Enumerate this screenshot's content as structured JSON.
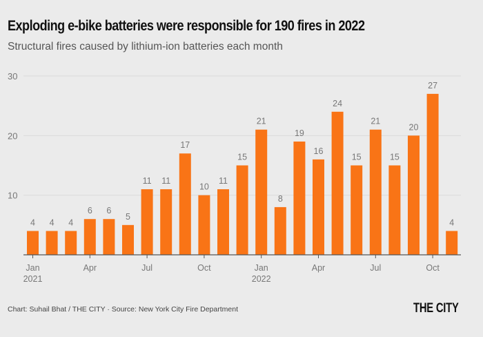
{
  "header": {
    "title": "Exploding e-bike batteries were responsible for 190 fires in 2022",
    "subtitle": "Structural fires caused by lithium-ion batteries each month"
  },
  "footer": {
    "credit": "Chart: Suhail Bhat / THE CITY · Source: New York City Fire Department",
    "logo": "THE CITY"
  },
  "colors": {
    "bar": "#f97416",
    "background": "#ebebeb",
    "label": "#777777",
    "grid": "#dadada",
    "axis": "#555555"
  },
  "chart_data": {
    "type": "bar",
    "title": "Exploding e-bike batteries were responsible for 190 fires in 2022",
    "subtitle": "Structural fires caused by lithium-ion batteries each month",
    "xlabel": "",
    "ylabel": "",
    "ylim": [
      0,
      30
    ],
    "yticks": [
      10,
      20,
      30
    ],
    "grid": true,
    "categories": [
      "Jan 2021",
      "Feb 2021",
      "Mar 2021",
      "Apr 2021",
      "May 2021",
      "Jun 2021",
      "Jul 2021",
      "Aug 2021",
      "Sep 2021",
      "Oct 2021",
      "Nov 2021",
      "Dec 2021",
      "Jan 2022",
      "Feb 2022",
      "Mar 2022",
      "Apr 2022",
      "May 2022",
      "Jun 2022",
      "Jul 2022",
      "Aug 2022",
      "Sep 2022",
      "Oct 2022",
      "Nov 2022"
    ],
    "values": [
      4,
      4,
      4,
      6,
      6,
      5,
      11,
      11,
      17,
      10,
      11,
      15,
      21,
      8,
      19,
      16,
      24,
      15,
      21,
      15,
      20,
      27,
      4
    ],
    "xticks": [
      {
        "index": 0,
        "label": "Jan",
        "sublabel": "2021"
      },
      {
        "index": 3,
        "label": "Apr",
        "sublabel": ""
      },
      {
        "index": 6,
        "label": "Jul",
        "sublabel": ""
      },
      {
        "index": 9,
        "label": "Oct",
        "sublabel": ""
      },
      {
        "index": 12,
        "label": "Jan",
        "sublabel": "2022"
      },
      {
        "index": 15,
        "label": "Apr",
        "sublabel": ""
      },
      {
        "index": 18,
        "label": "Jul",
        "sublabel": ""
      },
      {
        "index": 21,
        "label": "Oct",
        "sublabel": ""
      }
    ],
    "data_labels": true
  }
}
